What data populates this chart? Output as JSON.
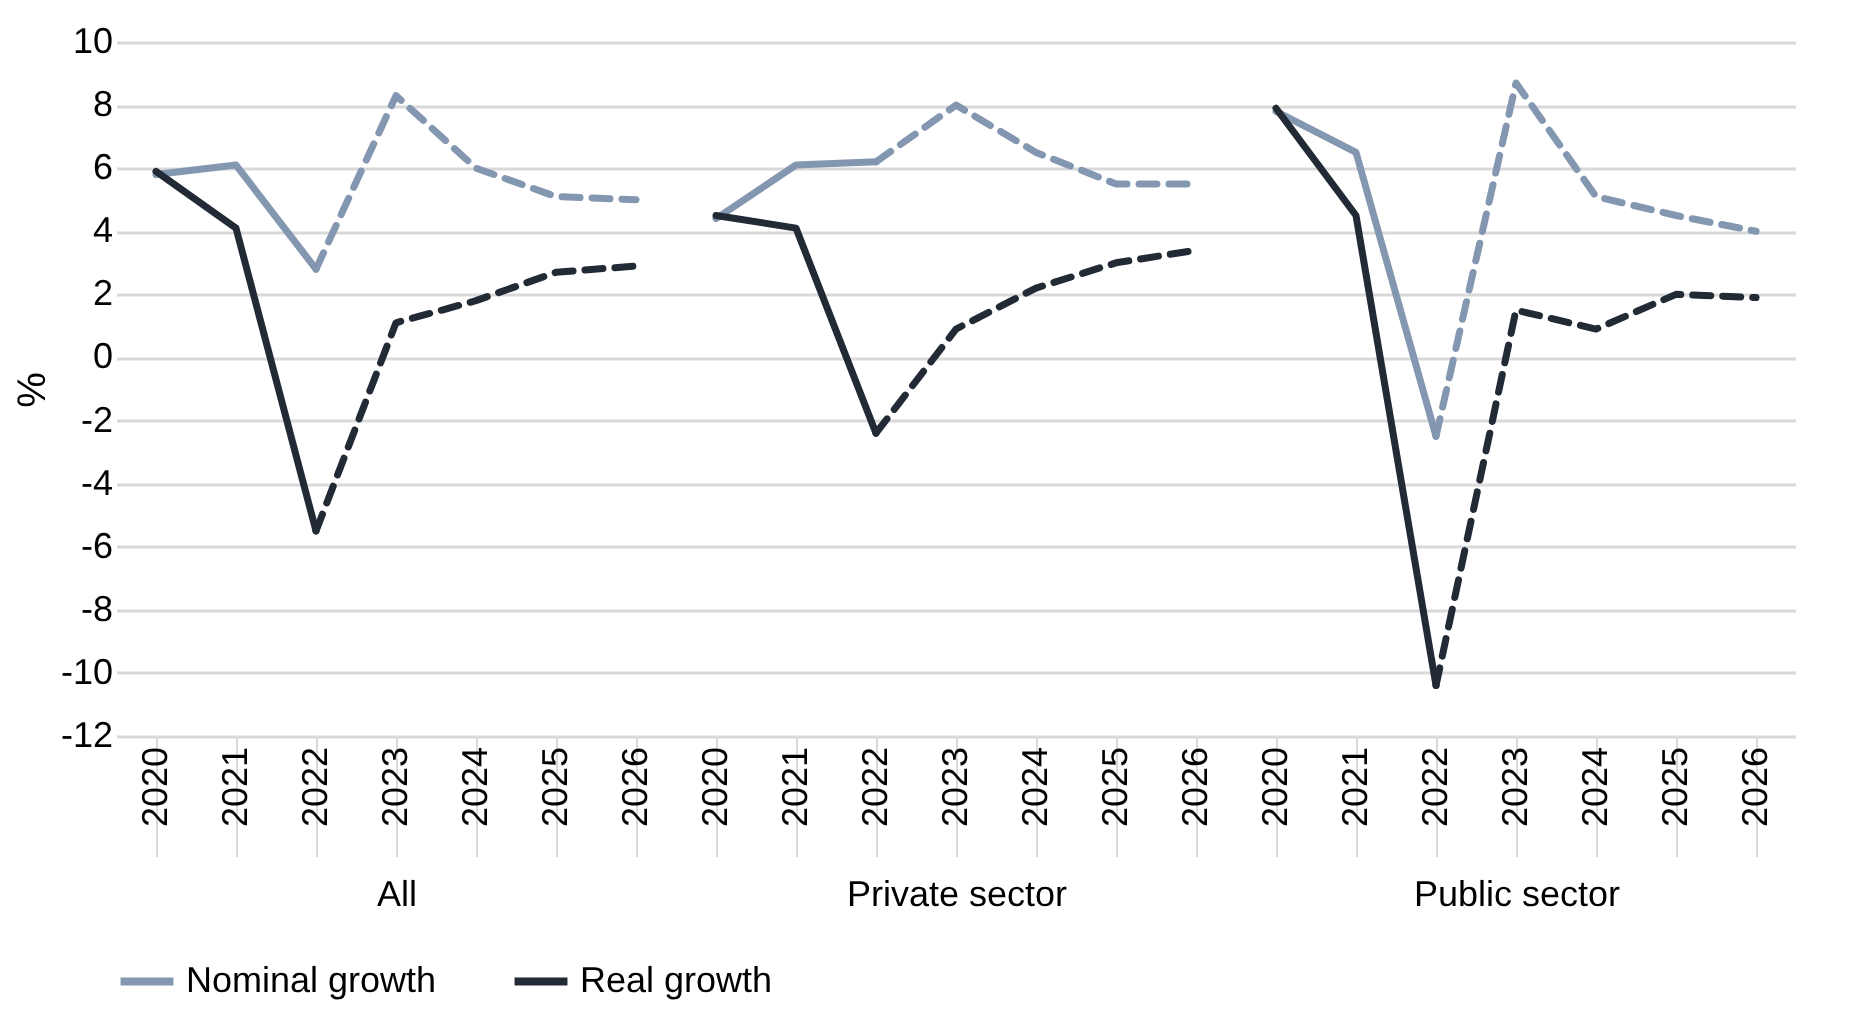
{
  "chart_data": [
    {
      "type": "line",
      "xlabel": "All",
      "ylabel": "%",
      "categories": [
        "2020",
        "2021",
        "2022",
        "2023",
        "2024",
        "2025",
        "2026"
      ],
      "ylim": [
        -12,
        10
      ],
      "yticks": [
        -12,
        -10,
        -8,
        -6,
        -4,
        -2,
        0,
        2,
        4,
        6,
        8,
        10
      ],
      "grid": "y",
      "legend": "bottom",
      "marker": "none",
      "series": [
        {
          "name": "Nominal growth",
          "color": "#8497b0",
          "line_style": "solid",
          "values": [
            5.8,
            6.1,
            2.8,
            null,
            null,
            null,
            null
          ]
        },
        {
          "name": "Real growth",
          "color": "#222a35",
          "line_style": "solid",
          "values": [
            5.9,
            4.1,
            -5.5,
            null,
            null,
            null,
            null
          ]
        },
        {
          "color": "#8497b0",
          "line_style": "dashed",
          "values": [
            null,
            null,
            2.8,
            8.3,
            6.0,
            5.1,
            5.0
          ]
        },
        {
          "color": "#222a35",
          "line_style": "dashed",
          "values": [
            null,
            null,
            -5.5,
            1.1,
            1.8,
            2.7,
            2.9
          ]
        }
      ]
    },
    {
      "type": "line",
      "xlabel": "Private sector",
      "categories": [
        "2020",
        "2021",
        "2022",
        "2023",
        "2024",
        "2025",
        "2026"
      ],
      "ylim": [
        -12,
        10
      ],
      "yticks": [
        -12,
        -10,
        -8,
        -6,
        -4,
        -2,
        0,
        2,
        4,
        6,
        8,
        10
      ],
      "grid": "y",
      "tick_labels": "x",
      "marker": "none",
      "series": [
        {
          "name": "Nominal growth",
          "color": "#8497b0",
          "line_style": "solid",
          "values": [
            4.4,
            6.1,
            6.2,
            null,
            null,
            null,
            null
          ]
        },
        {
          "name": "Real growth",
          "color": "#222a35",
          "line_style": "solid",
          "values": [
            4.5,
            4.1,
            -2.4,
            null,
            null,
            null,
            null
          ]
        },
        {
          "color": "#8497b0",
          "line_style": "dashed",
          "values": [
            null,
            null,
            6.2,
            8.0,
            6.5,
            5.5,
            5.5
          ]
        },
        {
          "color": "#222a35",
          "line_style": "dashed",
          "values": [
            null,
            null,
            -2.4,
            0.9,
            2.2,
            3.0,
            3.4
          ]
        }
      ]
    },
    {
      "type": "line",
      "xlabel": "Public sector",
      "categories": [
        "2020",
        "2021",
        "2022",
        "2023",
        "2024",
        "2025",
        "2026"
      ],
      "ylim": [
        -12,
        10
      ],
      "yticks": [
        -12,
        -10,
        -8,
        -6,
        -4,
        -2,
        0,
        2,
        4,
        6,
        8,
        10
      ],
      "grid": "y",
      "tick_labels": "x",
      "marker": "none",
      "series": [
        {
          "name": "Nominal growth",
          "color": "#8497b0",
          "line_style": "solid",
          "values": [
            7.8,
            6.5,
            -2.5,
            null,
            null,
            null,
            null
          ]
        },
        {
          "name": "Real growth",
          "color": "#222a35",
          "line_style": "solid",
          "values": [
            7.9,
            4.5,
            -10.4,
            null,
            null,
            null,
            null
          ]
        },
        {
          "color": "#8497b0",
          "line_style": "dashed",
          "values": [
            null,
            null,
            -2.5,
            8.7,
            5.1,
            4.5,
            4.0
          ]
        },
        {
          "color": "#222a35",
          "line_style": "dashed",
          "values": [
            null,
            null,
            -10.4,
            1.5,
            0.9,
            2.0,
            1.9
          ]
        }
      ]
    }
  ]
}
